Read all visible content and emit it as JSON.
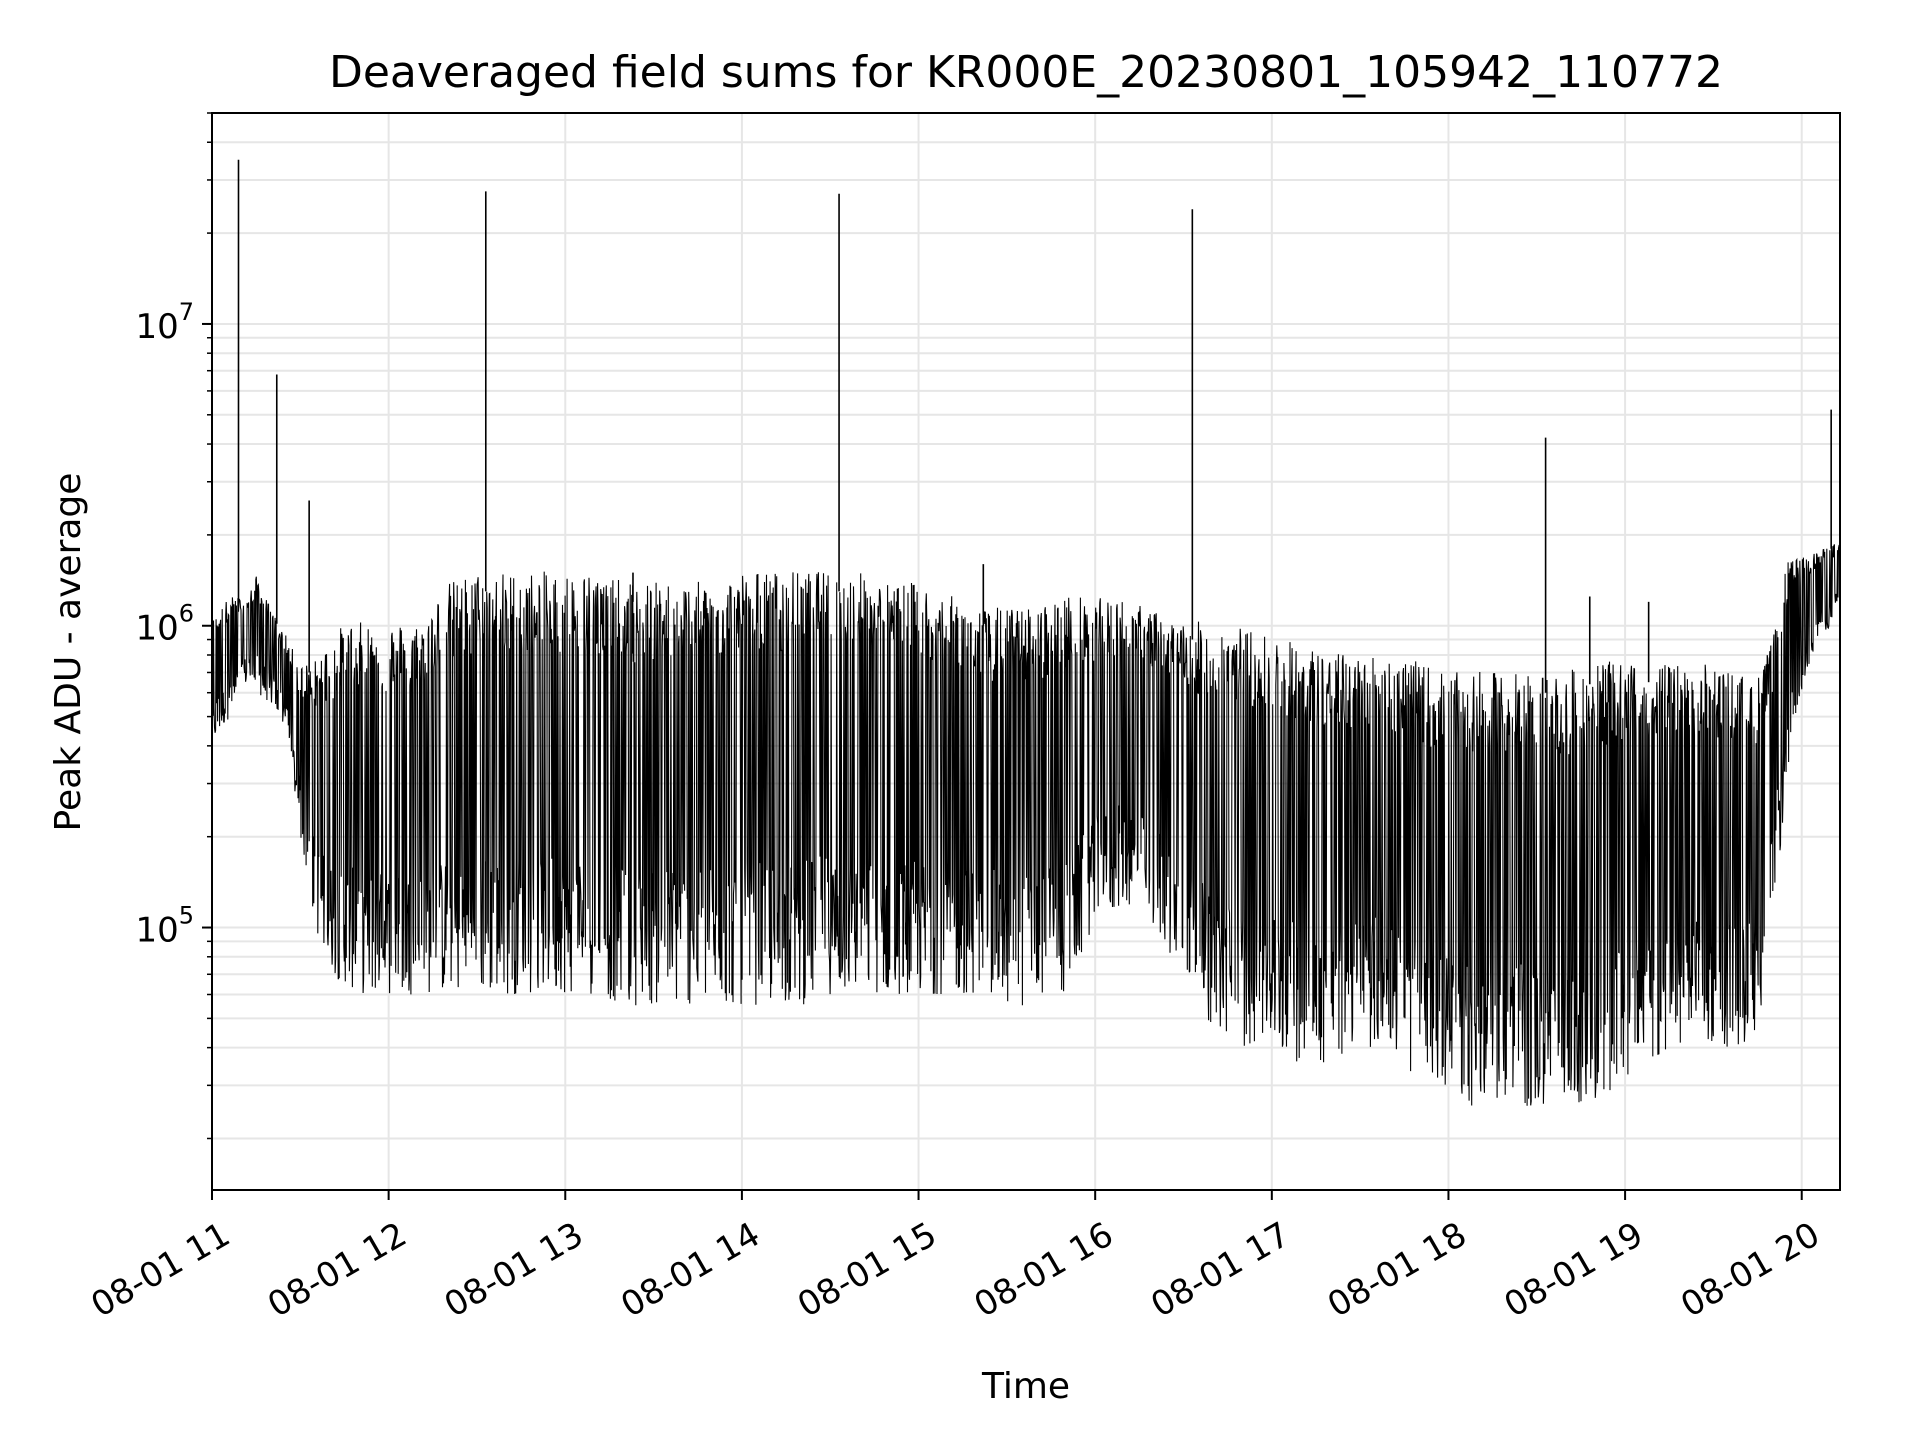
{
  "chart_data": {
    "type": "line",
    "title": "Deaveraged field sums for KR000E_20230801_105942_110772",
    "xlabel": "Time",
    "ylabel": "Peak ADU - average",
    "x_axis": {
      "scale": "time",
      "range": [
        "2023-08-01 11:00",
        "2023-08-01 20:13"
      ],
      "tick_labels": [
        "08-01 11",
        "08-01 12",
        "08-01 13",
        "08-01 14",
        "08-01 15",
        "08-01 16",
        "08-01 17",
        "08-01 18",
        "08-01 19",
        "08-01 20"
      ],
      "tick_label_rotation": 30
    },
    "y_axis": {
      "scale": "log",
      "range": [
        13500,
        50000000
      ],
      "tick_values": [
        100000,
        1000000,
        10000000
      ],
      "tick_base": "10",
      "tick_exponents": [
        "5",
        "6",
        "7"
      ]
    },
    "grid": true,
    "line_color": "#000000",
    "grid_color": "#e6e6e6",
    "series": [
      {
        "x": [
          "11:00",
          "11:06",
          "11:12",
          "11:15",
          "11:20",
          "11:25",
          "11:30",
          "11:35",
          "11:40",
          "11:45",
          "11:50",
          "12:00",
          "12:10",
          "12:20",
          "12:30",
          "12:40",
          "12:50",
          "13:00",
          "13:10",
          "13:20",
          "13:30",
          "13:40",
          "13:50",
          "14:00",
          "14:10",
          "14:20",
          "14:30",
          "14:40",
          "14:50",
          "15:00",
          "15:10",
          "15:20",
          "15:30",
          "15:40",
          "15:50",
          "16:00",
          "16:10",
          "16:20",
          "16:30",
          "16:40",
          "16:50",
          "17:00",
          "17:10",
          "17:20",
          "17:30",
          "17:40",
          "17:50",
          "18:00",
          "18:10",
          "18:20",
          "18:30",
          "18:40",
          "18:50",
          "19:00",
          "19:10",
          "19:20",
          "19:30",
          "19:40",
          "19:45",
          "19:50",
          "19:55",
          "20:00",
          "20:05",
          "20:10",
          "20:13"
        ],
        "upper": [
          1000000,
          1200000,
          1200000,
          1400000,
          1100000,
          900000,
          700000,
          700000,
          800000,
          900000,
          900000,
          900000,
          900000,
          1200000,
          1300000,
          1300000,
          1300000,
          1300000,
          1300000,
          1200000,
          1200000,
          1200000,
          1200000,
          1300000,
          1300000,
          1300000,
          1300000,
          1300000,
          1200000,
          1200000,
          1100000,
          1000000,
          1000000,
          1000000,
          1100000,
          1100000,
          1100000,
          1000000,
          900000,
          900000,
          850000,
          800000,
          750000,
          700000,
          700000,
          700000,
          650000,
          600000,
          600000,
          600000,
          600000,
          600000,
          650000,
          650000,
          650000,
          650000,
          650000,
          600000,
          600000,
          800000,
          1500000,
          1600000,
          1700000,
          1800000,
          1900000
        ],
        "lower": [
          400000,
          500000,
          650000,
          600000,
          550000,
          450000,
          200000,
          100000,
          70000,
          65000,
          60000,
          60000,
          60000,
          60000,
          60000,
          60000,
          60000,
          60000,
          60000,
          55000,
          55000,
          55000,
          55000,
          55000,
          55000,
          55000,
          60000,
          60000,
          60000,
          60000,
          60000,
          60000,
          55000,
          55000,
          60000,
          100000,
          120000,
          100000,
          70000,
          45000,
          40000,
          40000,
          35000,
          35000,
          40000,
          40000,
          30000,
          28000,
          25000,
          25000,
          25000,
          25000,
          25000,
          30000,
          35000,
          40000,
          40000,
          40000,
          45000,
          100000,
          300000,
          600000,
          900000,
          1000000,
          1100000
        ]
      }
    ],
    "spikes": [
      {
        "x": "11:09",
        "value": 35000000
      },
      {
        "x": "11:22",
        "value": 6800000
      },
      {
        "x": "11:33",
        "value": 2600000
      },
      {
        "x": "12:33",
        "value": 27500000
      },
      {
        "x": "13:23",
        "value": 1500000
      },
      {
        "x": "14:33",
        "value": 27000000
      },
      {
        "x": "15:22",
        "value": 1600000
      },
      {
        "x": "16:33",
        "value": 24000000
      },
      {
        "x": "18:33",
        "value": 4200000
      },
      {
        "x": "18:48",
        "value": 1250000
      },
      {
        "x": "19:08",
        "value": 1200000
      },
      {
        "x": "20:10",
        "value": 5200000
      }
    ]
  }
}
